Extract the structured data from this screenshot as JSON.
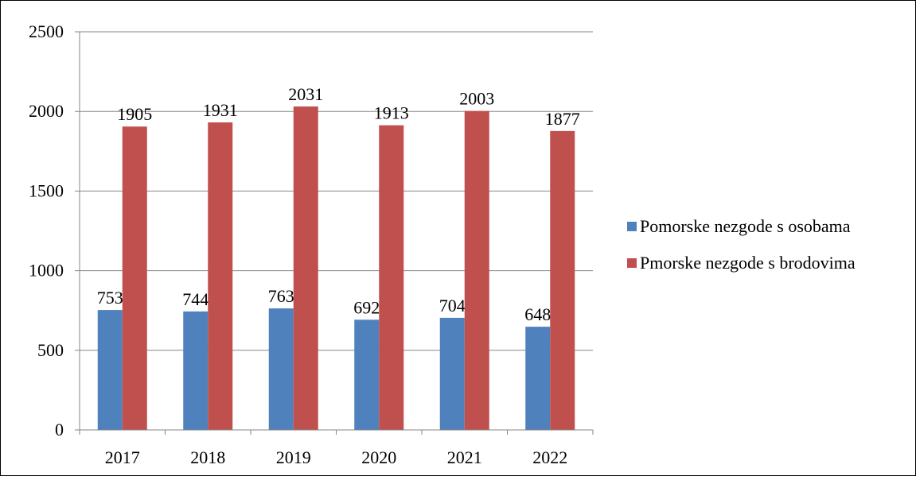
{
  "chart_data": {
    "type": "bar",
    "categories": [
      "2017",
      "2018",
      "2019",
      "2020",
      "2021",
      "2022"
    ],
    "series": [
      {
        "name": "Pomorske nezgode s osobama",
        "color": "#4f81bd",
        "values": [
          753,
          744,
          763,
          692,
          704,
          648
        ]
      },
      {
        "name": "Pmorske nezgode s brodovima",
        "color": "#c0504d",
        "values": [
          1905,
          1931,
          2031,
          1913,
          2003,
          1877
        ]
      }
    ],
    "ylim": [
      0,
      2500
    ],
    "yticks": [
      0,
      500,
      1000,
      1500,
      2000,
      2500
    ],
    "grid": true,
    "legend": "right"
  }
}
